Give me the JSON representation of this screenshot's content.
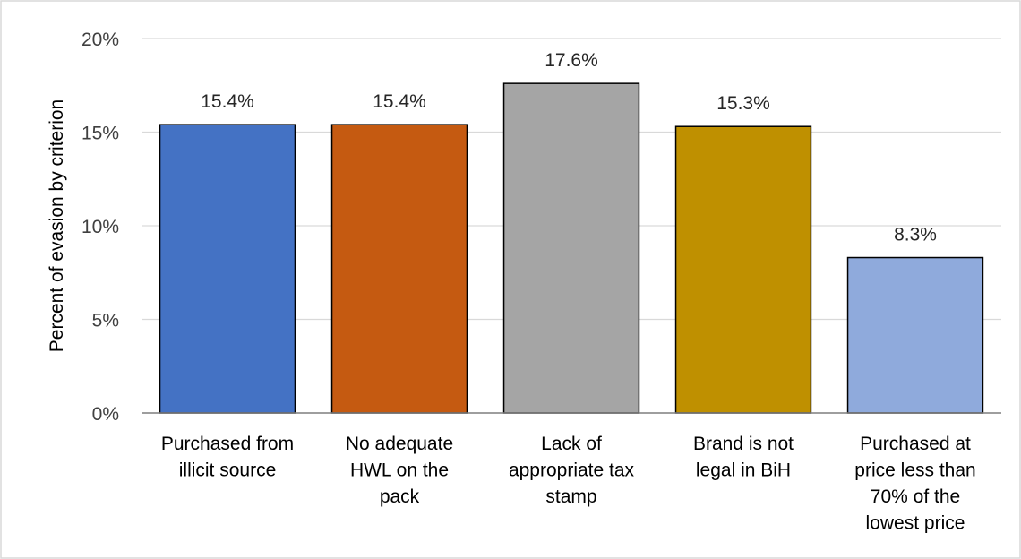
{
  "chart_data": {
    "type": "bar",
    "title": "",
    "xlabel": "",
    "ylabel": "Percent of evasion by criterion",
    "ylim": [
      0,
      20
    ],
    "yticks": [
      0,
      5,
      10,
      15,
      20
    ],
    "ytick_labels": [
      "0%",
      "5%",
      "10%",
      "15%",
      "20%"
    ],
    "grid": true,
    "legend": "none",
    "categories": [
      [
        "Purchased from",
        "illicit source"
      ],
      [
        "No adequate",
        "HWL on the",
        "pack"
      ],
      [
        "Lack of",
        "appropriate tax",
        "stamp"
      ],
      [
        "Brand is not",
        "legal in BiH"
      ],
      [
        "Purchased at",
        "price less than",
        "70% of the",
        "lowest price"
      ]
    ],
    "values": [
      15.4,
      15.4,
      17.6,
      15.3,
      8.3
    ],
    "data_labels": [
      "15.4%",
      "15.4%",
      "17.6%",
      "15.3%",
      "8.3%"
    ],
    "colors": [
      "#4472c4",
      "#c55a11",
      "#a5a5a5",
      "#bf9000",
      "#8faadc"
    ]
  }
}
